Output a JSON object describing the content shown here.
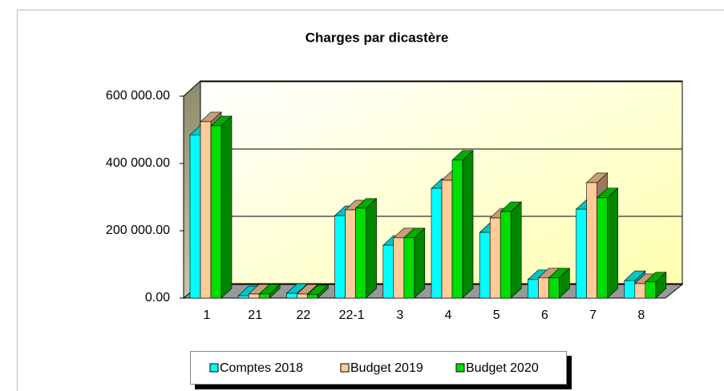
{
  "chart_data": {
    "type": "bar3d",
    "title": "Charges par dicastère",
    "categories": [
      "1",
      "21",
      "22",
      "22-1",
      "3",
      "4",
      "5",
      "6",
      "7",
      "8"
    ],
    "series": [
      {
        "name": "Comptes 2018",
        "color": "#00ffff",
        "values": [
          485000,
          7000,
          14000,
          245000,
          157000,
          326000,
          195000,
          55000,
          264000,
          52000
        ]
      },
      {
        "name": "Budget 2019",
        "color": "#ffcc99",
        "values": [
          524000,
          12000,
          12000,
          262000,
          179000,
          350000,
          238000,
          60000,
          343000,
          43000
        ]
      },
      {
        "name": "Budget 2020",
        "color": "#00dd00",
        "values": [
          512000,
          12000,
          10000,
          267000,
          179000,
          410000,
          257000,
          60000,
          298000,
          48000
        ]
      }
    ],
    "ylim": [
      0,
      600000
    ],
    "yticks": [
      {
        "value": 0,
        "label": "0.00"
      },
      {
        "value": 200000,
        "label": "200 000.00"
      },
      {
        "value": 400000,
        "label": "400 000.00"
      },
      {
        "value": 600000,
        "label": "600 000.00"
      }
    ],
    "grid": true,
    "legend": "bottom"
  }
}
